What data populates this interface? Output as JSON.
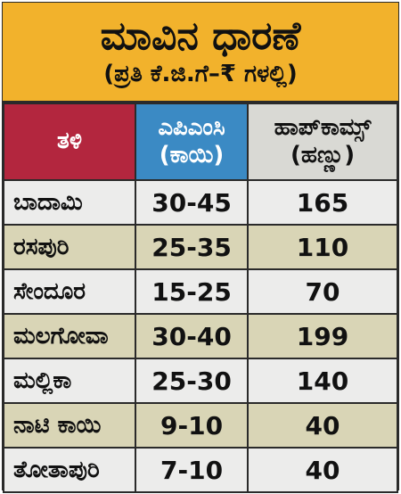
{
  "header": {
    "title": "ಮಾವಿನ ಧಾರಣೆ",
    "subtitle": "(ಪ್ರತಿ ಕೆ.ಜಿ.ಗೆ–₹ ಗಳಲ್ಲಿ)"
  },
  "table": {
    "columns": [
      {
        "line1": "ತಳಿ",
        "line2": ""
      },
      {
        "line1": "ಎಪಿಎಂಸಿ",
        "line2": "(ಕಾಯಿ)"
      },
      {
        "line1": "ಹಾಪ್‌ಕಾಮ್ಸ್",
        "line2": "(ಹಣ್ಣು)"
      }
    ],
    "rows": [
      {
        "variety": "ಬಾದಾಮಿ",
        "apmc": "30-45",
        "hopcoms": "165"
      },
      {
        "variety": "ರಸಪುರಿ",
        "apmc": "25-35",
        "hopcoms": "110"
      },
      {
        "variety": "ಸೇಂದೂರ",
        "apmc": "15-25",
        "hopcoms": "70"
      },
      {
        "variety": "ಮಲಗೋವಾ",
        "apmc": "30-40",
        "hopcoms": "199"
      },
      {
        "variety": "ಮಲ್ಲಿಕಾ",
        "apmc": "25-30",
        "hopcoms": "140"
      },
      {
        "variety": "ನಾಟಿ ಕಾಯಿ",
        "apmc": "9-10",
        "hopcoms": "40"
      },
      {
        "variety": "ತೋತಾಪುರಿ",
        "apmc": "7-10",
        "hopcoms": "40"
      }
    ]
  },
  "colors": {
    "header_bg": "#f2b22c",
    "variety_col_bg": "#b3263e",
    "apmc_col_bg": "#3b8ac4",
    "hopcoms_col_bg": "#d9d9d4",
    "row_light": "#ececeb",
    "row_tan": "#d9d5b6"
  }
}
